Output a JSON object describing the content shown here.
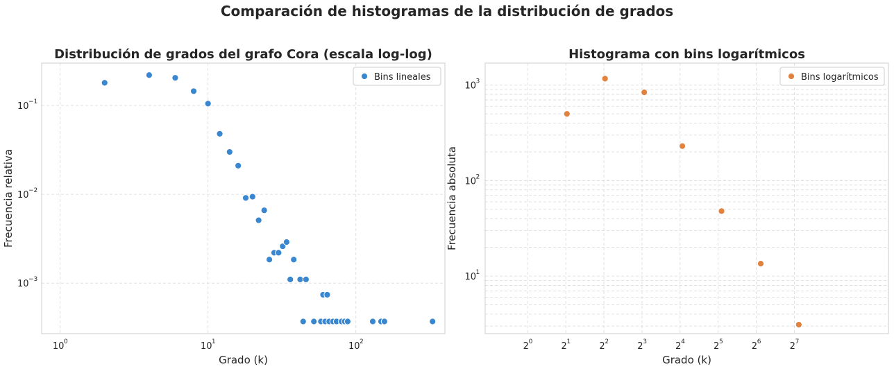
{
  "suptitle": "Comparación de histogramas de la distribución de grados",
  "chart_data": [
    {
      "type": "scatter",
      "title": "Distribución de grados del grafo Cora (escala log-log)",
      "xlabel": "Grado (k)",
      "ylabel": "Frecuencia relativa",
      "xscale": "log",
      "yscale": "log",
      "xlim": [
        0.75,
        400
      ],
      "ylim": [
        0.00027,
        0.3
      ],
      "grid": true,
      "legend_position": "top-right",
      "color": "#3a87d1",
      "x_ticks": [
        {
          "base": "10",
          "exp": "0"
        },
        {
          "base": "10",
          "exp": "1"
        },
        {
          "base": "10",
          "exp": "2"
        }
      ],
      "y_ticks": [
        {
          "base": "10",
          "exp": "−1"
        },
        {
          "base": "10",
          "exp": "−2"
        },
        {
          "base": "10",
          "exp": "−3"
        }
      ],
      "series": [
        {
          "name": "Bins lineales",
          "points": [
            [
              2,
              0.18
            ],
            [
              4,
              0.22
            ],
            [
              6,
              0.205
            ],
            [
              8,
              0.145
            ],
            [
              10,
              0.105
            ],
            [
              12,
              0.048
            ],
            [
              14,
              0.03
            ],
            [
              16,
              0.021
            ],
            [
              18,
              0.0091
            ],
            [
              20,
              0.0094
            ],
            [
              22,
              0.0051
            ],
            [
              24,
              0.0066
            ],
            [
              26,
              0.00184
            ],
            [
              28,
              0.0022
            ],
            [
              30,
              0.0022
            ],
            [
              32,
              0.0026
            ],
            [
              34,
              0.0029
            ],
            [
              36,
              0.0011
            ],
            [
              38,
              0.00184
            ],
            [
              42,
              0.0011
            ],
            [
              46,
              0.0011
            ],
            [
              60,
              0.00074
            ],
            [
              64,
              0.00074
            ],
            [
              44,
              0.00037
            ],
            [
              52,
              0.00037
            ],
            [
              58,
              0.00037
            ],
            [
              62,
              0.00037
            ],
            [
              66,
              0.00037
            ],
            [
              70,
              0.00037
            ],
            [
              74,
              0.00037
            ],
            [
              80,
              0.00037
            ],
            [
              84,
              0.00037
            ],
            [
              88,
              0.00037
            ],
            [
              130,
              0.00037
            ],
            [
              148,
              0.00037
            ],
            [
              156,
              0.00037
            ],
            [
              330,
              0.00037
            ]
          ]
        }
      ]
    },
    {
      "type": "scatter",
      "title": "Histograma con bins logarítmicos",
      "xlabel": "Grado (k)",
      "ylabel": "Frecuencia absoluta",
      "xscale": "log2",
      "yscale": "log",
      "xlim": [
        0.6,
        2.4
      ],
      "ylim": [
        2.5,
        1700
      ],
      "grid": true,
      "legend_position": "top-right",
      "color": "#e1823f",
      "x_ticks": [
        {
          "value": 0.79,
          "base": "2",
          "exp": "0"
        },
        {
          "value": 0.96,
          "base": "2",
          "exp": "1"
        },
        {
          "value": 1.13,
          "base": "2",
          "exp": "2"
        },
        {
          "value": 1.3,
          "base": "2",
          "exp": "3"
        },
        {
          "value": 1.47,
          "base": "2",
          "exp": "4"
        },
        {
          "value": 1.64,
          "base": "2",
          "exp": "5"
        },
        {
          "value": 1.81,
          "base": "2",
          "exp": "6"
        },
        {
          "value": 1.98,
          "base": "2",
          "exp": "7"
        }
      ],
      "y_ticks": [
        {
          "value": 1000,
          "base": "10",
          "exp": "3"
        },
        {
          "value": 100,
          "base": "10",
          "exp": "2"
        },
        {
          "value": 10,
          "base": "10",
          "exp": "1"
        }
      ],
      "series": [
        {
          "name": "Bins logarítmicos",
          "points": [
            [
              0.965,
              500
            ],
            [
              1.135,
              1170
            ],
            [
              1.31,
              840
            ],
            [
              1.48,
              230
            ],
            [
              1.655,
              48
            ],
            [
              1.83,
              13.5
            ],
            [
              2.0,
              3.1
            ]
          ]
        }
      ]
    }
  ]
}
